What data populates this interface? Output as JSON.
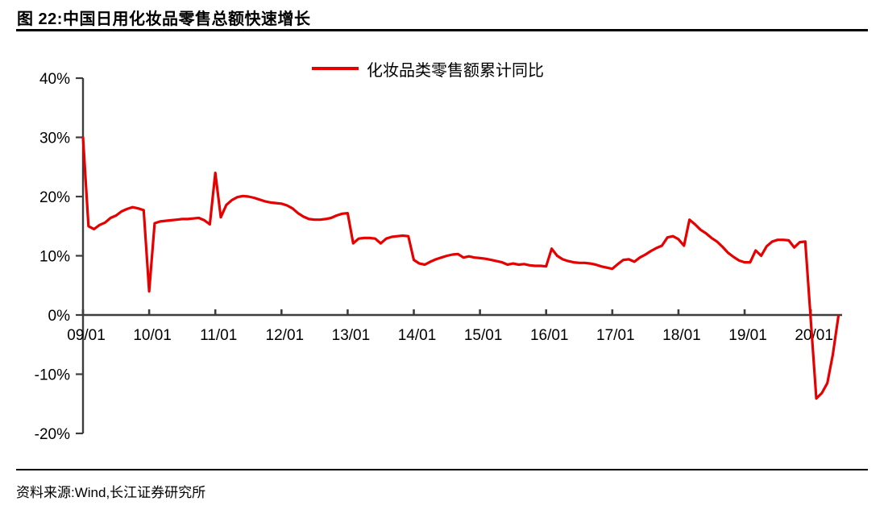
{
  "figure": {
    "title": "图 22:中国日用化妆品零售总额快速增长",
    "source": "资料来源:Wind,长江证券研究所"
  },
  "legend": {
    "label": "化妆品类零售额累计同比"
  },
  "chart_data": {
    "type": "line",
    "title": "中国日用化妆品零售总额快速增长",
    "legend_entries": [
      "化妆品类零售额累计同比"
    ],
    "legend_position": "top-center",
    "unit": "%",
    "grid": false,
    "line_color": "#e60000",
    "axis_color": "#3d3d3d",
    "x_start": "2009-01",
    "frequency": "monthly",
    "x_tick_labels": [
      "09/01",
      "10/01",
      "11/01",
      "12/01",
      "13/01",
      "14/01",
      "15/01",
      "16/01",
      "17/01",
      "18/01",
      "19/01",
      "20/01"
    ],
    "y_ticks": [
      40,
      30,
      20,
      10,
      0,
      -10,
      -20
    ],
    "y_tick_labels": [
      "40%",
      "30%",
      "20%",
      "10%",
      "0%",
      "-10%",
      "-20%"
    ],
    "ylim": [
      -20,
      40
    ],
    "series": [
      {
        "name": "化妆品类零售额累计同比",
        "color": "#e60000",
        "values": [
          30.0,
          15.0,
          14.5,
          15.2,
          15.6,
          16.4,
          16.8,
          17.5,
          17.9,
          18.2,
          18.0,
          17.7,
          4.0,
          15.5,
          15.8,
          15.9,
          16.0,
          16.1,
          16.2,
          16.2,
          16.3,
          16.4,
          16.0,
          15.3,
          24.0,
          16.5,
          18.6,
          19.4,
          19.9,
          20.1,
          20.0,
          19.8,
          19.5,
          19.2,
          19.0,
          18.9,
          18.8,
          18.5,
          18.0,
          17.2,
          16.6,
          16.2,
          16.1,
          16.1,
          16.2,
          16.4,
          16.8,
          17.1,
          17.2,
          12.1,
          12.9,
          13.0,
          13.0,
          12.9,
          12.1,
          12.9,
          13.2,
          13.3,
          13.4,
          13.3,
          9.3,
          8.7,
          8.5,
          9.0,
          9.4,
          9.7,
          10.0,
          10.2,
          10.3,
          9.7,
          9.9,
          9.7,
          9.6,
          9.5,
          9.3,
          9.1,
          8.9,
          8.5,
          8.7,
          8.5,
          8.6,
          8.4,
          8.3,
          8.3,
          8.2,
          11.2,
          10.0,
          9.4,
          9.1,
          8.9,
          8.8,
          8.8,
          8.7,
          8.5,
          8.2,
          8.0,
          7.8,
          8.6,
          9.3,
          9.4,
          9.0,
          9.7,
          10.2,
          10.8,
          11.3,
          11.7,
          13.1,
          13.3,
          12.8,
          11.7,
          16.1,
          15.3,
          14.4,
          13.8,
          13.0,
          12.4,
          11.5,
          10.5,
          9.8,
          9.2,
          8.9,
          8.9,
          10.9,
          10.0,
          11.6,
          12.4,
          12.7,
          12.7,
          12.6,
          11.4,
          12.3,
          12.4,
          null,
          -14.1,
          -13.2,
          -11.5,
          -6.7,
          -0.2
        ]
      }
    ]
  }
}
